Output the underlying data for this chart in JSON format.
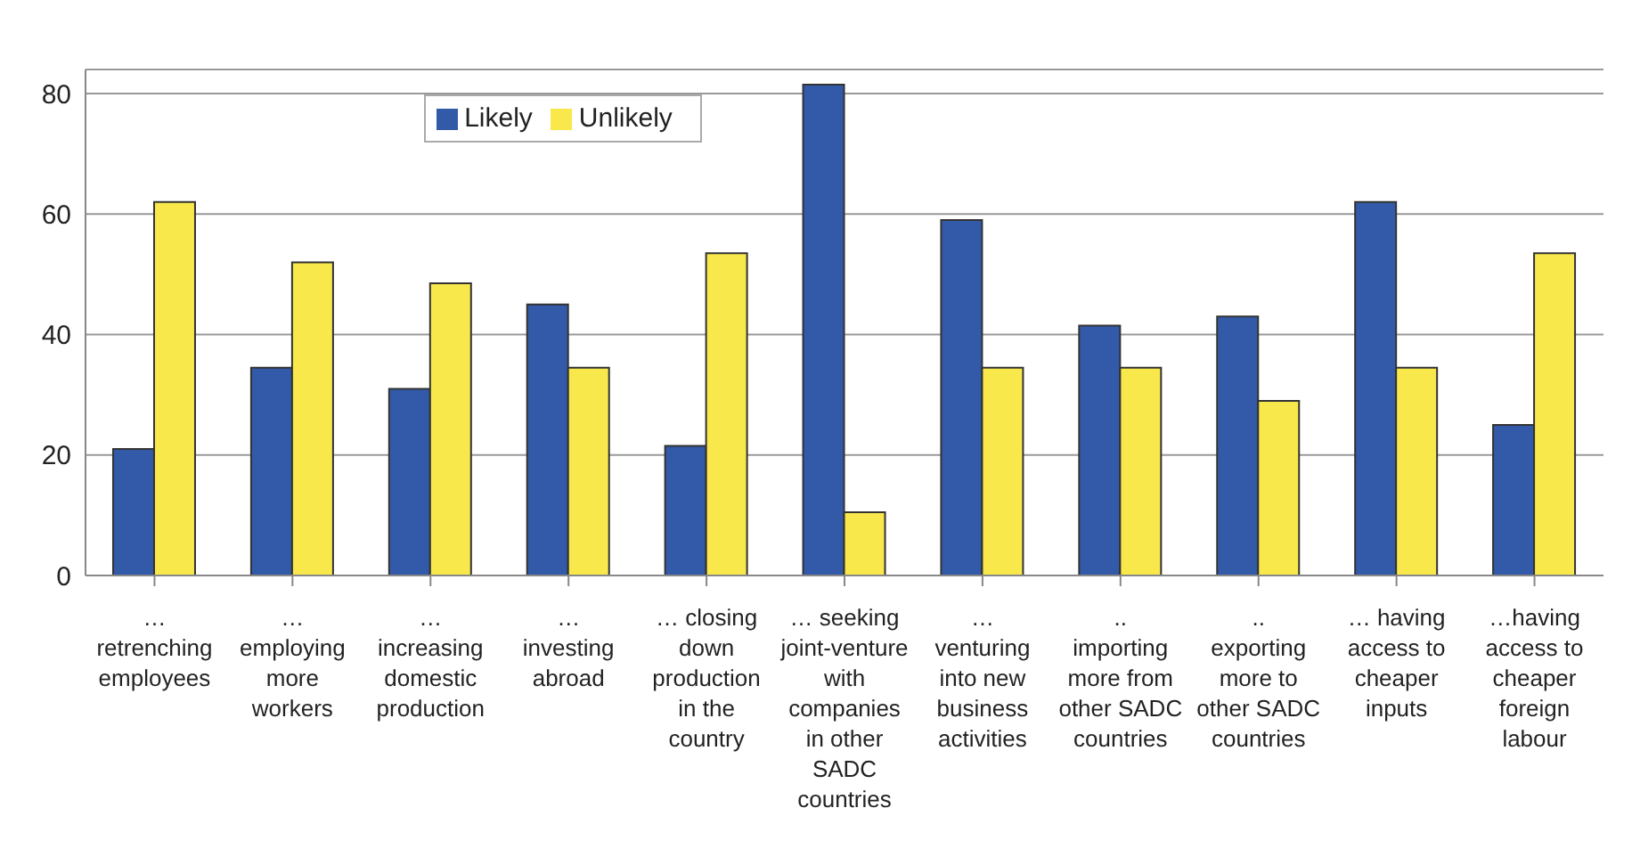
{
  "chart_data": {
    "type": "bar",
    "categories": [
      "… retrenching employees",
      "… employing more workers",
      "… increasing domestic production",
      "… investing abroad",
      "… closing down production in the country",
      "… seeking joint-venture with companies in other SADC countries",
      "… venturing into new business activities",
      ".. importing more from other SADC countries",
      ".. exporting more to other SADC countries",
      "… having access to cheaper inputs",
      "…having access to cheaper foreign labour"
    ],
    "series": [
      {
        "name": "Likely",
        "color": "#325aa8",
        "values": [
          21,
          34.5,
          31,
          45,
          21.5,
          81.5,
          59,
          41.5,
          43,
          62,
          25
        ]
      },
      {
        "name": "Unlikely",
        "color": "#f8e84b",
        "values": [
          62,
          52,
          48.5,
          34.5,
          53.5,
          10.5,
          34.5,
          34.5,
          29,
          34.5,
          53.5
        ]
      }
    ],
    "ylim": [
      0,
      84
    ],
    "yticks": [
      0,
      20,
      40,
      60,
      80
    ],
    "grid": "y",
    "legend": "top"
  }
}
